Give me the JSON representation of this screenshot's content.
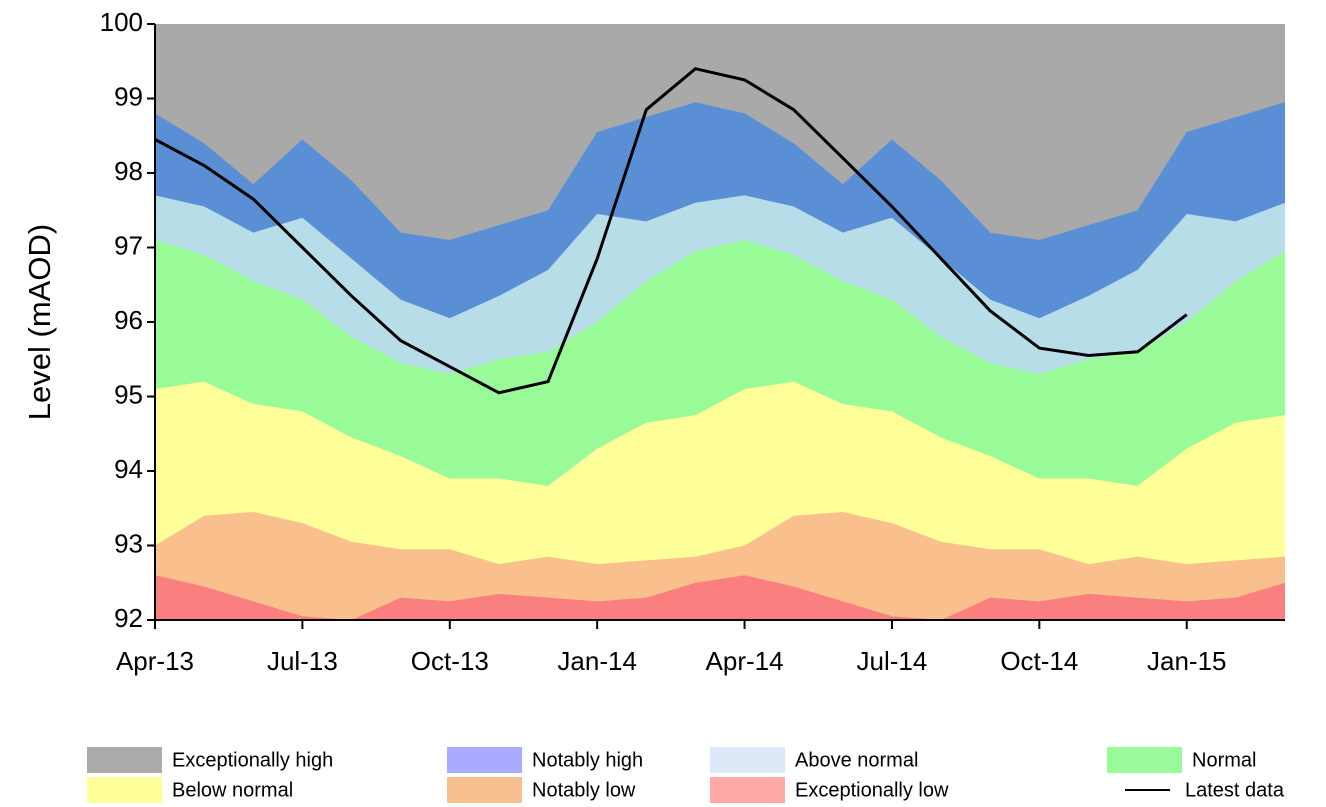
{
  "chart_data": {
    "type": "area",
    "y_label": "Level (mAOD)",
    "categories": [
      "Apr-13",
      null,
      null,
      "Jul-13",
      null,
      null,
      "Oct-13",
      null,
      null,
      "Jan-14",
      null,
      null,
      "Apr-14",
      null,
      null,
      "Jul-14",
      null,
      null,
      "Oct-14",
      null,
      null,
      "Jan-15",
      null,
      null
    ],
    "ylim": [
      92,
      100
    ],
    "yticks": [
      92,
      93,
      94,
      95,
      96,
      97,
      98,
      99,
      100
    ],
    "series": [
      {
        "name": "Exceptionally high",
        "color": "#a9a9a9",
        "legend_color": "#aaaaaa"
      },
      {
        "name": "Notably high",
        "color": "#5a8fd6",
        "legend_color": "#aaaaff",
        "values": [
          98.8,
          98.4,
          97.85,
          98.45,
          97.9,
          97.2,
          97.1,
          97.3,
          97.5,
          98.55,
          98.75,
          98.95,
          98.8,
          98.4,
          97.85,
          98.45,
          97.9,
          97.2,
          97.1,
          97.3,
          97.5,
          98.55,
          98.75,
          98.95
        ]
      },
      {
        "name": "Above normal",
        "color": "#b7dde8",
        "legend_color": "#dde8f8",
        "values": [
          97.7,
          97.55,
          97.2,
          97.4,
          96.85,
          96.3,
          96.05,
          96.35,
          96.7,
          97.45,
          97.35,
          97.6,
          97.7,
          97.55,
          97.2,
          97.4,
          96.85,
          96.3,
          96.05,
          96.35,
          96.7,
          97.45,
          97.35,
          97.6
        ]
      },
      {
        "name": "Normal",
        "color": "#98fb98",
        "legend_color": "#99fa99",
        "values": [
          97.1,
          96.9,
          96.55,
          96.3,
          95.8,
          95.45,
          95.3,
          95.5,
          95.6,
          96.0,
          96.55,
          96.95,
          97.1,
          96.9,
          96.55,
          96.3,
          95.8,
          95.45,
          95.3,
          95.5,
          95.6,
          96.0,
          96.55,
          96.95
        ]
      },
      {
        "name": "Below normal",
        "color": "#ffff99",
        "legend_color": "#ffff99",
        "values": [
          95.1,
          95.2,
          94.9,
          94.8,
          94.45,
          94.2,
          93.9,
          93.9,
          93.8,
          94.3,
          94.65,
          94.75,
          95.1,
          95.2,
          94.9,
          94.8,
          94.45,
          94.2,
          93.9,
          93.9,
          93.8,
          94.3,
          94.65,
          94.75
        ]
      },
      {
        "name": "Notably low",
        "color": "#f9c08e",
        "legend_color": "#f9c08f",
        "values": [
          93.0,
          93.4,
          93.45,
          93.3,
          93.05,
          92.95,
          92.95,
          92.75,
          92.85,
          92.75,
          92.8,
          92.85,
          93.0,
          93.4,
          93.45,
          93.3,
          93.05,
          92.95,
          92.95,
          92.75,
          92.85,
          92.75,
          92.8,
          92.85
        ]
      },
      {
        "name": "Exceptionally low",
        "color": "#fa8080",
        "legend_color": "#ffa8a8",
        "values": [
          92.6,
          92.45,
          92.25,
          92.05,
          92.0,
          92.3,
          92.25,
          92.35,
          92.3,
          92.25,
          92.3,
          92.5,
          92.6,
          92.45,
          92.25,
          92.05,
          92.0,
          92.3,
          92.25,
          92.35,
          92.3,
          92.25,
          92.3,
          92.5
        ]
      },
      {
        "name": "Latest data",
        "type": "line",
        "color": "#000000",
        "values": [
          98.45,
          98.1,
          97.65,
          97.0,
          96.35,
          95.75,
          95.4,
          95.05,
          95.2,
          96.85,
          98.85,
          99.4,
          99.25,
          98.85,
          98.2,
          97.55,
          96.85,
          96.15,
          95.65,
          95.55,
          95.6,
          96.1,
          null,
          null
        ]
      }
    ]
  }
}
